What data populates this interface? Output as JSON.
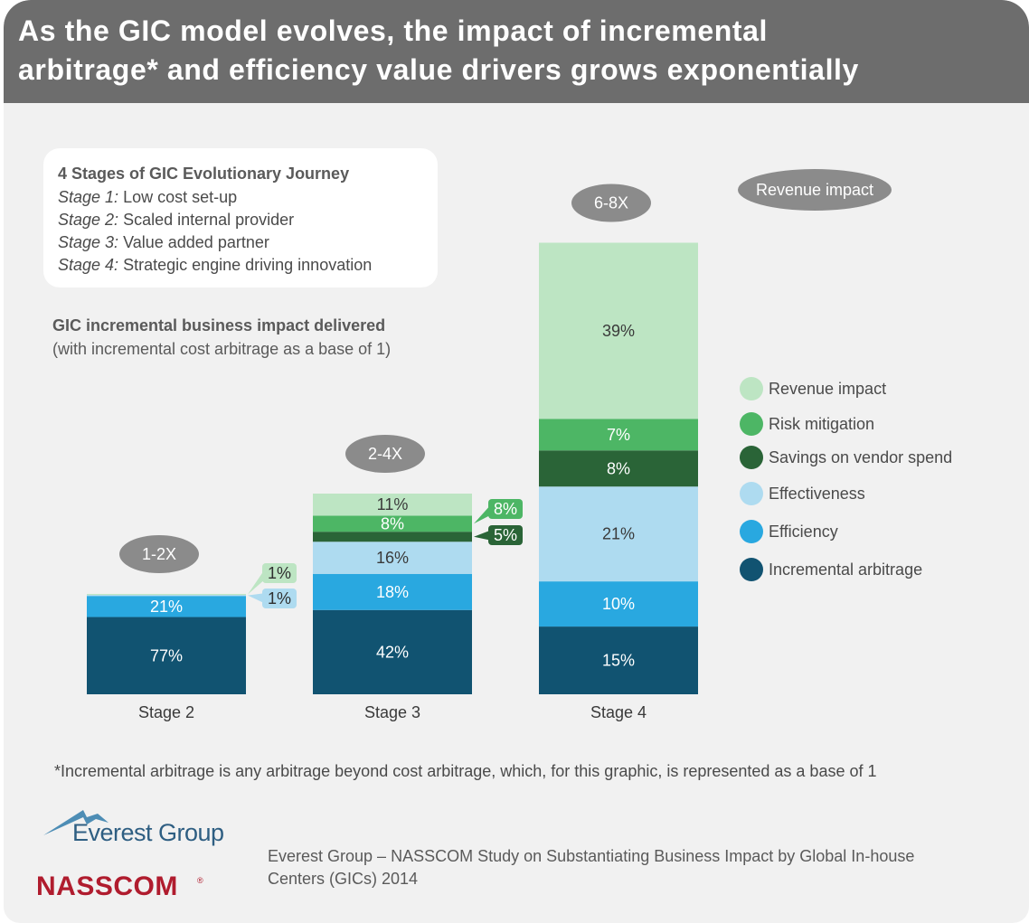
{
  "title": {
    "line1": "As the GIC model evolves, the impact of incremental",
    "line2": "arbitrage* and efficiency value drivers grows exponentially"
  },
  "stages_box": {
    "heading": "4 Stages of GIC Evolutionary Journey",
    "items": [
      {
        "label": "Stage 1:",
        "text": " Low cost set-up"
      },
      {
        "label": "Stage 2:",
        "text": " Scaled internal provider"
      },
      {
        "label": "Stage 3:",
        "text": " Value added partner"
      },
      {
        "label": "Stage 4:",
        "text": " Strategic engine driving innovation"
      }
    ]
  },
  "impact_heading": "GIC incremental business impact delivered",
  "impact_subheading": "(with incremental cost arbitrage as a base of 1)",
  "colors": {
    "revenue": "#bde5c3",
    "risk": "#4db665",
    "savings": "#2a6437",
    "effectiveness": "#aedbf0",
    "efficiency": "#29a8e0",
    "arbitrage": "#115371",
    "bubble": "#8b8b8b"
  },
  "chart_data": {
    "type": "bar",
    "stacked": true,
    "categories": [
      "Stage 2",
      "Stage 3",
      "Stage 4"
    ],
    "multipliers": [
      "1-2X",
      "2-4X",
      "6-8X"
    ],
    "relative_height": [
      1,
      2,
      4.5
    ],
    "series": [
      {
        "name": "Incremental arbitrage",
        "key": "arbitrage",
        "values": [
          77,
          42,
          15
        ],
        "labels": [
          "77%",
          "42%",
          "15%"
        ]
      },
      {
        "name": "Efficiency",
        "key": "efficiency",
        "values": [
          21,
          18,
          10
        ],
        "labels": [
          "21%",
          "18%",
          "10%"
        ]
      },
      {
        "name": "Effectiveness",
        "key": "effectiveness",
        "values": [
          1,
          16,
          21
        ],
        "labels": [
          "1%",
          "16%",
          "21%"
        ]
      },
      {
        "name": "Savings on vendor spend",
        "key": "savings",
        "values": [
          0,
          5,
          8
        ],
        "labels": [
          "",
          "5%",
          "8%"
        ]
      },
      {
        "name": "Risk mitigation",
        "key": "risk",
        "values": [
          0,
          8,
          7
        ],
        "labels": [
          "",
          "8%",
          "7%"
        ]
      },
      {
        "name": "Revenue impact",
        "key": "revenue",
        "values": [
          1,
          11,
          39
        ],
        "labels": [
          "1%",
          "11%",
          "39%"
        ]
      }
    ],
    "legend": [
      "Revenue impact",
      "Risk mitigation",
      "Savings on vendor spend",
      "Effectiveness",
      "Efficiency",
      "Incremental arbitrage"
    ],
    "legend_keys": [
      "revenue",
      "risk",
      "savings",
      "effectiveness",
      "efficiency",
      "arbitrage"
    ],
    "top_annotation": "Revenue impact",
    "callouts": [
      {
        "stage": 0,
        "series": "revenue",
        "label": "1%"
      },
      {
        "stage": 0,
        "series": "effectiveness",
        "label": "1%"
      },
      {
        "stage": 1,
        "series": "risk",
        "label": "8%"
      },
      {
        "stage": 1,
        "series": "savings",
        "label": "5%"
      }
    ]
  },
  "footnote": "*Incremental arbitrage is any arbitrage beyond cost arbitrage, which, for this graphic, is represented as a base of 1",
  "logos": {
    "everest": "Everest Group",
    "nasscom": "NASSCOM",
    "nasscom_reg": "®"
  },
  "source": "Everest Group – NASSCOM Study on Substantiating Business Impact by Global In-house Centers (GICs) 2014"
}
